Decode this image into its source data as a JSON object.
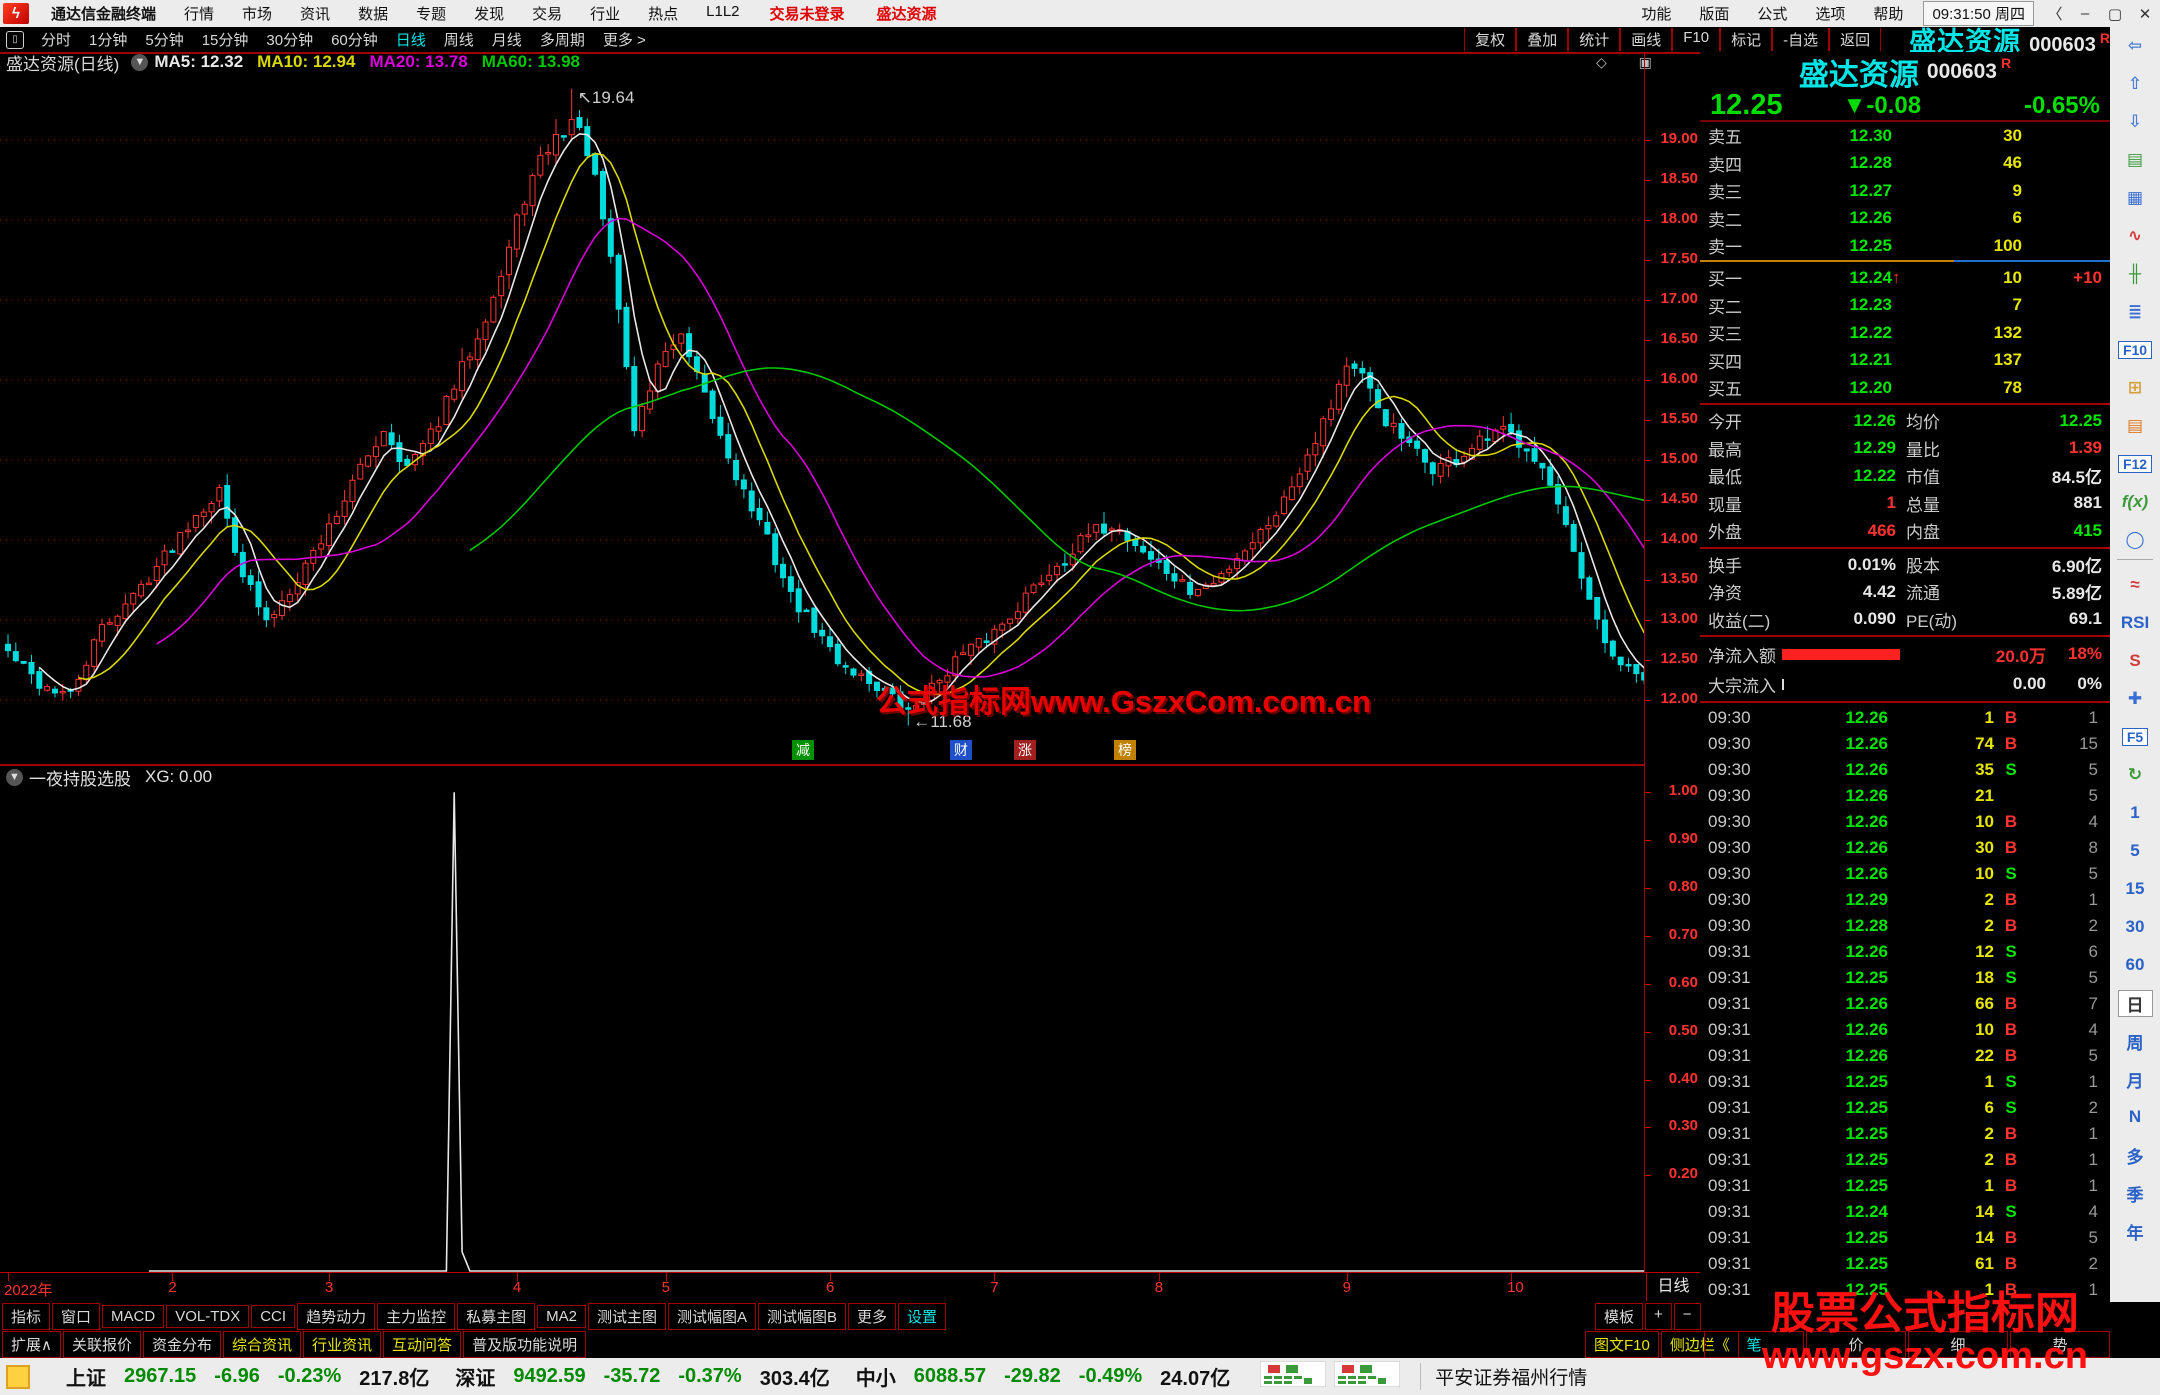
{
  "window": {
    "app_title": "通达信金融终端",
    "menus": [
      "行情",
      "市场",
      "资讯",
      "数据",
      "专题",
      "发现",
      "交易",
      "行业",
      "热点",
      "L1L2"
    ],
    "login_status": "交易未登录",
    "stock_shortcut": "盛达资源",
    "right_menus": [
      "功能",
      "版面",
      "公式",
      "选项",
      "帮助"
    ],
    "clock": "09:31:50 周四",
    "win_buttons": [
      "〈",
      "–",
      "▢",
      "✕"
    ]
  },
  "toolbar": {
    "periods": [
      {
        "label": "分时",
        "active": false
      },
      {
        "label": "1分钟",
        "active": false
      },
      {
        "label": "5分钟",
        "active": false
      },
      {
        "label": "15分钟",
        "active": false
      },
      {
        "label": "30分钟",
        "active": false
      },
      {
        "label": "60分钟",
        "active": false
      },
      {
        "label": "日线",
        "active": true
      },
      {
        "label": "周线",
        "active": false
      },
      {
        "label": "月线",
        "active": false
      },
      {
        "label": "多周期",
        "active": false
      },
      {
        "label": "更多 >",
        "active": false
      }
    ],
    "actions": [
      "复权",
      "叠加",
      "统计",
      "画线",
      "F10",
      "标记",
      "-自选",
      "返回"
    ],
    "symbol_name": "盛达资源",
    "symbol_code": "000603",
    "symbol_flag": "R"
  },
  "chart": {
    "title": "盛达资源(日线)",
    "ma_legend": [
      {
        "label": "MA5: 12.32",
        "color": "#e8e8e8"
      },
      {
        "label": "MA10: 12.94",
        "color": "#d8d800"
      },
      {
        "label": "MA20: 13.78",
        "color": "#d800d8"
      },
      {
        "label": "MA60: 13.98",
        "color": "#00c800"
      }
    ],
    "corner_icons": "◇ ▣",
    "watermark": "公式指标网www.GszxCom.com.cn",
    "high_annotation": "↖19.64",
    "low_annotation": "←11.68",
    "event_markers": [
      {
        "label": "减",
        "color": "#009000",
        "x": 792
      },
      {
        "label": "财",
        "color": "#2050c8",
        "x": 950
      },
      {
        "label": "涨",
        "color": "#a02020",
        "x": 1014
      },
      {
        "label": "榜",
        "color": "#c08000",
        "x": 1114
      }
    ],
    "period_label": "日线"
  },
  "chart_data": {
    "type": "candlestick",
    "symbol": "盛达资源(日线)",
    "title": "盛达资源 000603 daily candlestick with MA5/MA10/MA20/MA60",
    "ylim": [
      11.55,
      20.2
    ],
    "y_ticks": [
      12.0,
      12.5,
      13.0,
      13.5,
      14.0,
      14.5,
      15.0,
      15.5,
      16.0,
      16.5,
      17.0,
      17.5,
      18.0,
      18.5,
      19.0
    ],
    "grid_lines": [
      12,
      13,
      14,
      15,
      16,
      17,
      18,
      19
    ],
    "days": 210,
    "high_point": {
      "day": 72,
      "price": 19.64
    },
    "low_point": {
      "day": 115,
      "price": 11.68
    },
    "last_close": 12.25,
    "ma_values": {
      "MA5": 12.32,
      "MA10": 12.94,
      "MA20": 13.78,
      "MA60": 13.98
    },
    "close_waypoints": [
      [
        0,
        12.6
      ],
      [
        4,
        12.2
      ],
      [
        8,
        12.05
      ],
      [
        12,
        12.9
      ],
      [
        16,
        13.3
      ],
      [
        20,
        13.8
      ],
      [
        24,
        14.35
      ],
      [
        27,
        14.6
      ],
      [
        30,
        13.6
      ],
      [
        33,
        12.95
      ],
      [
        36,
        13.4
      ],
      [
        40,
        14.0
      ],
      [
        44,
        14.7
      ],
      [
        48,
        15.4
      ],
      [
        51,
        14.9
      ],
      [
        54,
        15.3
      ],
      [
        57,
        15.9
      ],
      [
        60,
        16.6
      ],
      [
        63,
        17.3
      ],
      [
        66,
        18.3
      ],
      [
        69,
        18.9
      ],
      [
        72,
        19.25
      ],
      [
        74,
        18.9
      ],
      [
        76,
        18.0
      ],
      [
        78,
        16.9
      ],
      [
        80,
        15.4
      ],
      [
        82,
        15.9
      ],
      [
        84,
        16.4
      ],
      [
        86,
        16.5
      ],
      [
        88,
        16.0
      ],
      [
        91,
        15.3
      ],
      [
        94,
        14.6
      ],
      [
        97,
        14.0
      ],
      [
        100,
        13.3
      ],
      [
        103,
        12.9
      ],
      [
        106,
        12.5
      ],
      [
        109,
        12.3
      ],
      [
        112,
        12.1
      ],
      [
        115,
        11.85
      ],
      [
        118,
        12.15
      ],
      [
        121,
        12.5
      ],
      [
        124,
        12.7
      ],
      [
        127,
        12.95
      ],
      [
        130,
        13.3
      ],
      [
        134,
        13.7
      ],
      [
        138,
        14.05
      ],
      [
        141,
        14.2
      ],
      [
        144,
        13.95
      ],
      [
        148,
        13.6
      ],
      [
        151,
        13.35
      ],
      [
        154,
        13.45
      ],
      [
        157,
        13.8
      ],
      [
        160,
        14.1
      ],
      [
        163,
        14.5
      ],
      [
        166,
        15.1
      ],
      [
        169,
        15.7
      ],
      [
        171,
        16.2
      ],
      [
        173,
        16.0
      ],
      [
        176,
        15.5
      ],
      [
        179,
        15.15
      ],
      [
        182,
        14.9
      ],
      [
        185,
        15.0
      ],
      [
        188,
        15.2
      ],
      [
        191,
        15.35
      ],
      [
        194,
        15.2
      ],
      [
        196,
        14.9
      ],
      [
        198,
        14.4
      ],
      [
        200,
        13.8
      ],
      [
        202,
        13.2
      ],
      [
        204,
        12.7
      ],
      [
        206,
        12.45
      ],
      [
        208,
        12.3
      ],
      [
        209,
        12.25
      ]
    ],
    "month_ticks": [
      {
        "label": "2022年",
        "day": 0
      },
      {
        "label": "2",
        "day": 21
      },
      {
        "label": "3",
        "day": 41
      },
      {
        "label": "4",
        "day": 65
      },
      {
        "label": "5",
        "day": 84
      },
      {
        "label": "6",
        "day": 105
      },
      {
        "label": "7",
        "day": 126
      },
      {
        "label": "8",
        "day": 147
      },
      {
        "label": "9",
        "day": 171
      },
      {
        "label": "10",
        "day": 192
      }
    ],
    "colors": {
      "up": "#ff3434",
      "down": "#00dcdc",
      "ma5": "#e8e8e8",
      "ma10": "#d8d800",
      "ma20": "#d800d8",
      "ma60": "#00c800",
      "grid": "#a00000"
    },
    "indicator": {
      "name": "一夜持股选股",
      "value_label": "XG: 0.00",
      "y_ticks": [
        1.0,
        0.9,
        0.8,
        0.7,
        0.6,
        0.5,
        0.4,
        0.3,
        0.2
      ],
      "baseline_value": 0,
      "baseline_start_day": 18,
      "spikes": [
        {
          "day": 57,
          "value": 1.0
        },
        {
          "day": 58,
          "value": 0.04
        }
      ]
    }
  },
  "quote": {
    "name": "盛达资源",
    "code": "000603",
    "flag": "R",
    "price": "12.25",
    "change": "▼-0.08",
    "pct": "-0.65%",
    "sell_levels": [
      {
        "label": "卖五",
        "price": "12.30",
        "vol": "30"
      },
      {
        "label": "卖四",
        "price": "12.28",
        "vol": "46"
      },
      {
        "label": "卖三",
        "price": "12.27",
        "vol": "9"
      },
      {
        "label": "卖二",
        "price": "12.26",
        "vol": "6"
      },
      {
        "label": "卖一",
        "price": "12.25",
        "vol": "100"
      }
    ],
    "buy_levels": [
      {
        "label": "买一",
        "price": "12.24",
        "arrow": "↑",
        "vol": "10",
        "extra": "+10"
      },
      {
        "label": "买二",
        "price": "12.23",
        "vol": "7"
      },
      {
        "label": "买三",
        "price": "12.22",
        "vol": "132"
      },
      {
        "label": "买四",
        "price": "12.21",
        "vol": "137"
      },
      {
        "label": "买五",
        "price": "12.20",
        "vol": "78"
      }
    ],
    "info_rows": [
      {
        "l1": "今开",
        "v1": "12.26",
        "c1": "#00e600",
        "l2": "均价",
        "v2": "12.25",
        "c2": "#00e600"
      },
      {
        "l1": "最高",
        "v1": "12.29",
        "c1": "#00e600",
        "l2": "量比",
        "v2": "1.39",
        "c2": "#ff3232"
      },
      {
        "l1": "最低",
        "v1": "12.22",
        "c1": "#00e600",
        "l2": "市值",
        "v2": "84.5亿",
        "c2": "#e8e8e8"
      },
      {
        "l1": "现量",
        "v1": "1",
        "c1": "#ff3232",
        "l2": "总量",
        "v2": "881",
        "c2": "#e8e8e8"
      },
      {
        "l1": "外盘",
        "v1": "466",
        "c1": "#ff3232",
        "l2": "内盘",
        "v2": "415",
        "c2": "#00e600"
      }
    ],
    "fin_rows": [
      {
        "l1": "换手",
        "v1": "0.01%",
        "c1": "#e8e8e8",
        "l2": "股本",
        "v2": "6.90亿",
        "c2": "#e8e8e8"
      },
      {
        "l1": "净资",
        "v1": "4.42",
        "c1": "#e8e8e8",
        "l2": "流通",
        "v2": "5.89亿",
        "c2": "#e8e8e8"
      },
      {
        "l1": "收益(二)",
        "v1": "0.090",
        "c1": "#e8e8e8",
        "l2": "PE(动)",
        "v2": "69.1",
        "c2": "#e8e8e8"
      }
    ],
    "flow_rows": [
      {
        "label": "净流入额",
        "bar": true,
        "value": "20.0万",
        "pct": "18%",
        "color": "#ff3232"
      },
      {
        "label": "大宗流入",
        "bar": false,
        "value": "0.00",
        "pct": "0%",
        "color": "#e8e8e8"
      }
    ],
    "ticks": [
      [
        "09:30",
        "12.26",
        "1",
        "B",
        "1"
      ],
      [
        "09:30",
        "12.26",
        "74",
        "B",
        "15"
      ],
      [
        "09:30",
        "12.26",
        "35",
        "S",
        "5"
      ],
      [
        "09:30",
        "12.26",
        "21",
        "",
        "5"
      ],
      [
        "09:30",
        "12.26",
        "10",
        "B",
        "4"
      ],
      [
        "09:30",
        "12.26",
        "30",
        "B",
        "8"
      ],
      [
        "09:30",
        "12.26",
        "10",
        "S",
        "5"
      ],
      [
        "09:30",
        "12.29",
        "2",
        "B",
        "1"
      ],
      [
        "09:30",
        "12.28",
        "2",
        "B",
        "2"
      ],
      [
        "09:31",
        "12.26",
        "12",
        "S",
        "6"
      ],
      [
        "09:31",
        "12.25",
        "18",
        "S",
        "5"
      ],
      [
        "09:31",
        "12.26",
        "66",
        "B",
        "7"
      ],
      [
        "09:31",
        "12.26",
        "10",
        "B",
        "4"
      ],
      [
        "09:31",
        "12.26",
        "22",
        "B",
        "5"
      ],
      [
        "09:31",
        "12.25",
        "1",
        "S",
        "1"
      ],
      [
        "09:31",
        "12.25",
        "6",
        "S",
        "2"
      ],
      [
        "09:31",
        "12.25",
        "2",
        "B",
        "1"
      ],
      [
        "09:31",
        "12.25",
        "2",
        "B",
        "1"
      ],
      [
        "09:31",
        "12.25",
        "1",
        "B",
        "1"
      ],
      [
        "09:31",
        "12.24",
        "14",
        "S",
        "4"
      ],
      [
        "09:31",
        "12.25",
        "14",
        "B",
        "5"
      ],
      [
        "09:31",
        "12.25",
        "61",
        "B",
        "2"
      ],
      [
        "09:31",
        "12.25",
        "1",
        "B",
        "1"
      ]
    ],
    "panel_tabs": [
      {
        "label": "笔",
        "active": true
      },
      {
        "label": "价",
        "active": false
      },
      {
        "label": "细",
        "active": false
      },
      {
        "label": "势",
        "active": false
      }
    ]
  },
  "bottom": {
    "row1": [
      {
        "label": "指标"
      },
      {
        "label": "窗口"
      },
      {
        "label": "MACD"
      },
      {
        "label": "VOL-TDX"
      },
      {
        "label": "CCI"
      },
      {
        "label": "趋势动力"
      },
      {
        "label": "主力监控"
      },
      {
        "label": "私募主图"
      },
      {
        "label": "MA2"
      },
      {
        "label": "测试主图"
      },
      {
        "label": "测试幅图A"
      },
      {
        "label": "测试幅图B"
      },
      {
        "label": "更多"
      },
      {
        "label": "设置",
        "cyan": true
      }
    ],
    "row1_right": [
      "模板",
      "+",
      "−"
    ],
    "row2": [
      {
        "label": "扩展∧"
      },
      {
        "label": "关联报价"
      },
      {
        "label": "资金分布"
      },
      {
        "label": "综合资讯",
        "yel": true
      },
      {
        "label": "行业资讯",
        "yel": true
      },
      {
        "label": "互动问答",
        "yel": true
      },
      {
        "label": "普及版功能说明"
      }
    ],
    "row2_right": [
      "图文F10",
      "侧边栏《"
    ]
  },
  "status": {
    "indices": [
      {
        "name": "上证",
        "value": "2967.15",
        "change": "-6.96",
        "pct": "-0.23%",
        "amount": "217.8亿"
      },
      {
        "name": "深证",
        "value": "9492.59",
        "change": "-35.72",
        "pct": "-0.37%",
        "amount": "303.4亿"
      },
      {
        "name": "中小",
        "value": "6088.57",
        "change": "-29.82",
        "pct": "-0.49%",
        "amount": "24.07亿"
      }
    ],
    "broker": "平安证券福州行情"
  },
  "side_strip": [
    {
      "t": "⇦",
      "n": "back-arrow-icon",
      "c": "#4a7fd4"
    },
    {
      "t": "⇧",
      "n": "up-arrow-icon",
      "c": "#4a7fd4"
    },
    {
      "t": "⇩",
      "n": "down-arrow-icon",
      "c": "#4a7fd4"
    },
    {
      "t": "▤",
      "n": "quote-board-icon",
      "c": "#3a9a3a"
    },
    {
      "t": "▦",
      "n": "grid-report-icon",
      "c": "#3a6fd4"
    },
    {
      "t": "∿",
      "n": "trend-line-icon",
      "c": "#d43a3a"
    },
    {
      "t": "╫",
      "n": "kline-icon",
      "c": "#3a9a3a"
    },
    {
      "t": "≣",
      "n": "news-icon",
      "c": "#3a6fd4"
    },
    {
      "t": "F10",
      "n": "f10-button",
      "box": true
    },
    {
      "t": "⊞",
      "n": "structure-icon",
      "c": "#d4a03a"
    },
    {
      "t": "▤",
      "n": "document-icon",
      "c": "#e07820"
    },
    {
      "t": "F12",
      "n": "f12-button",
      "box": true
    },
    {
      "t": "f(x)",
      "n": "formula-icon",
      "c": "#3a9a3a",
      "i": true
    },
    {
      "t": "◯",
      "n": "oval-tool-icon",
      "c": "#3a6fd4"
    },
    {
      "hr": true,
      "n": "strip-divider"
    },
    {
      "t": "≈",
      "n": "multi-line-icon",
      "c": "#d43a3a"
    },
    {
      "t": "RSI",
      "n": "rsi-button",
      "c": "#2a62c8"
    },
    {
      "t": "S",
      "n": "s-indicator-button",
      "c": "#d43a3a"
    },
    {
      "t": "✚",
      "n": "move-tool-icon",
      "c": "#3a6fd4"
    },
    {
      "t": "F5",
      "n": "f5-button",
      "box": true
    },
    {
      "t": "↻",
      "n": "refresh-icon",
      "c": "#3a9a3a"
    },
    {
      "t": "1",
      "n": "period-1min"
    },
    {
      "t": "5",
      "n": "period-5min"
    },
    {
      "t": "15",
      "n": "period-15min"
    },
    {
      "t": "30",
      "n": "period-30min"
    },
    {
      "t": "60",
      "n": "period-60min"
    },
    {
      "t": "日",
      "n": "period-day",
      "sel": true
    },
    {
      "t": "周",
      "n": "period-week"
    },
    {
      "t": "月",
      "n": "period-month"
    },
    {
      "t": "N",
      "n": "period-n"
    },
    {
      "t": "多",
      "n": "period-multi"
    },
    {
      "t": "季",
      "n": "period-quarter"
    },
    {
      "t": "年",
      "n": "period-year"
    }
  ],
  "watermark_br": {
    "line1": "股票公式指标网",
    "line2": "www.gszx.com.cn"
  }
}
